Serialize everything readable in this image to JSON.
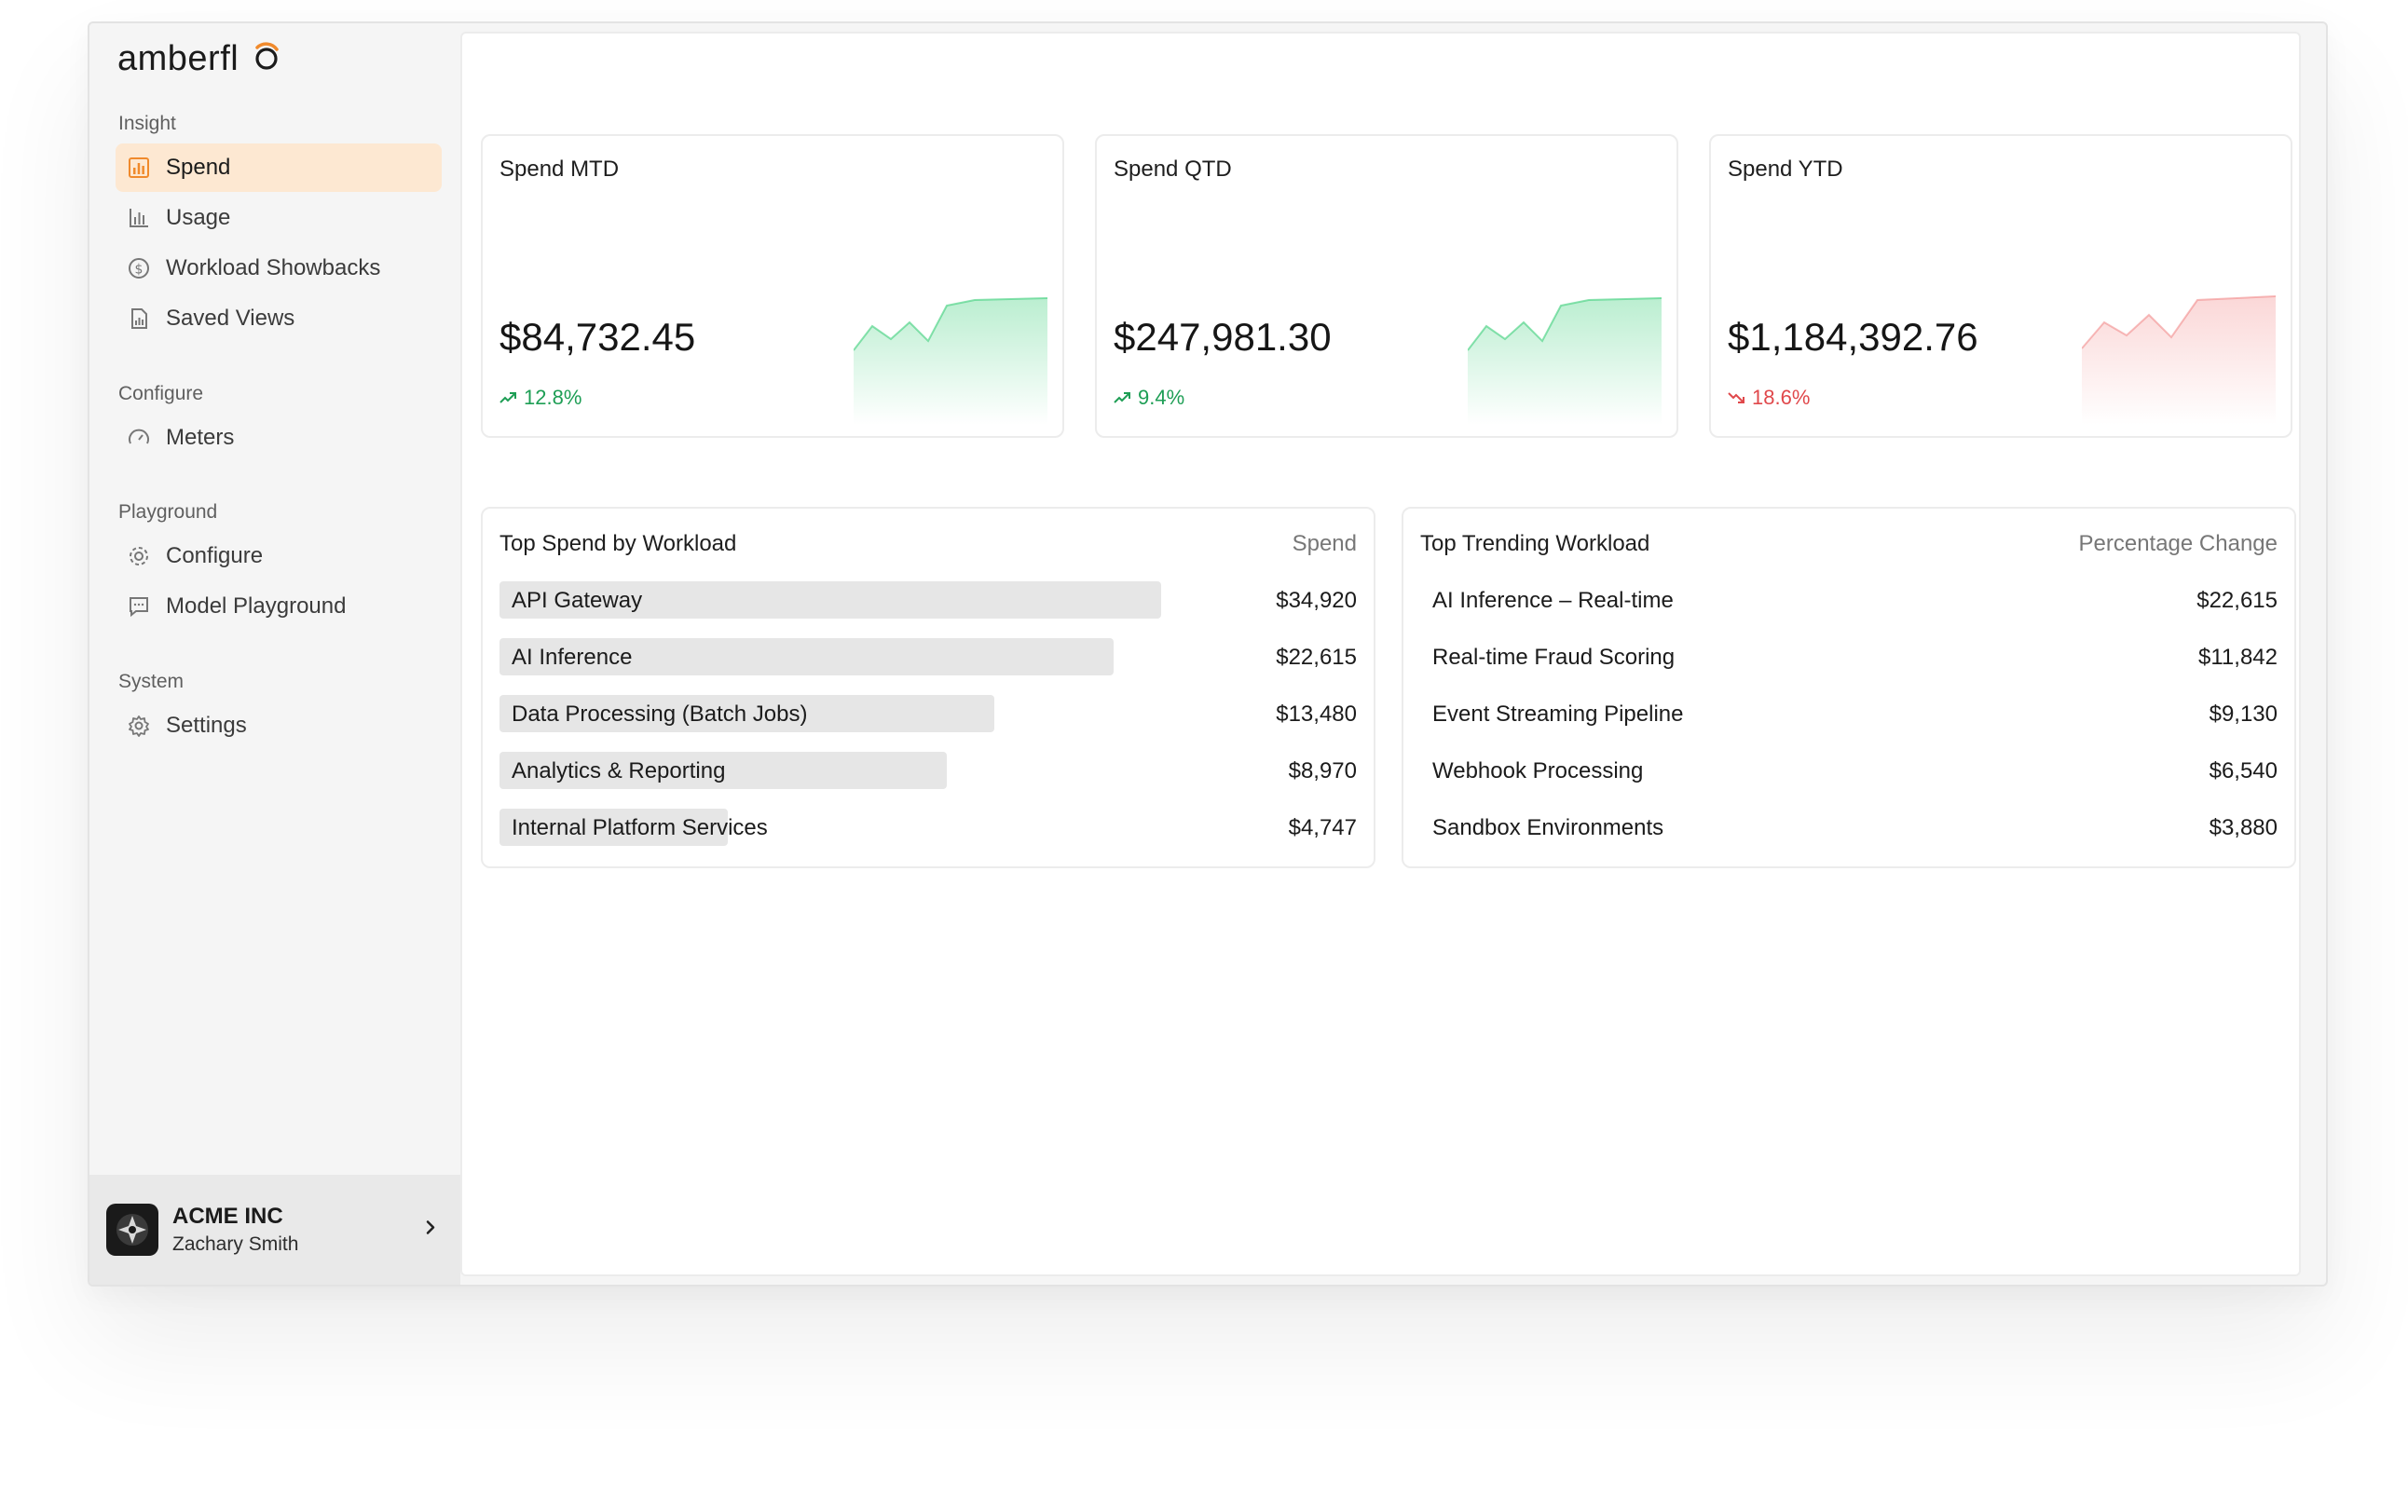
{
  "brand": {
    "name": "amberflo",
    "accent": "#f08a2c"
  },
  "sidebar": {
    "sections": [
      {
        "label": "Insight"
      },
      {
        "label": "Configure"
      },
      {
        "label": "Playground"
      },
      {
        "label": "System"
      }
    ],
    "items": [
      {
        "label": "Spend",
        "icon": "bar-chart-icon",
        "active": true
      },
      {
        "label": "Usage",
        "icon": "bar-chart-outline-icon"
      },
      {
        "label": "Workload Showbacks",
        "icon": "dollar-circle-icon"
      },
      {
        "label": "Saved Views",
        "icon": "document-chart-icon"
      },
      {
        "label": "Meters",
        "icon": "gauge-icon"
      },
      {
        "label": "Configure",
        "icon": "cog-icon"
      },
      {
        "label": "Model Playground",
        "icon": "chat-icon"
      },
      {
        "label": "Settings",
        "icon": "settings-gear-icon"
      }
    ],
    "account": {
      "org": "ACME INC",
      "user": "Zachary Smith"
    }
  },
  "kpis": [
    {
      "title": "Spend MTD",
      "value": "$84,732.45",
      "change": "12.8%",
      "direction": "up",
      "color": "#1e9e55"
    },
    {
      "title": "Spend QTD",
      "value": "$247,981.30",
      "change": "9.4%",
      "direction": "up",
      "color": "#1e9e55"
    },
    {
      "title": "Spend YTD",
      "value": "$1,184,392.76",
      "change": "18.6%",
      "direction": "down",
      "color": "#e0484b"
    }
  ],
  "top_spend": {
    "title": "Top Spend by Workload",
    "column": "Spend",
    "rows": [
      {
        "label": "API Gateway",
        "value": "$34,920",
        "amount": 34920
      },
      {
        "label": "AI Inference",
        "value": "$22,615",
        "amount": 22615
      },
      {
        "label": "Data Processing (Batch Jobs)",
        "value": "$13,480",
        "amount": 13480
      },
      {
        "label": "Analytics & Reporting",
        "value": "$8,970",
        "amount": 8970
      },
      {
        "label": "Internal Platform Services",
        "value": "$4,747",
        "amount": 4747
      }
    ]
  },
  "top_trending": {
    "title": "Top Trending Workload",
    "column": "Percentage Change",
    "rows": [
      {
        "label": "AI Inference – Real-time",
        "value": "$22,615"
      },
      {
        "label": "Real-time Fraud Scoring",
        "value": "$11,842"
      },
      {
        "label": "Event Streaming Pipeline",
        "value": "$9,130"
      },
      {
        "label": "Webhook Processing",
        "value": "$6,540"
      },
      {
        "label": "Sandbox Environments",
        "value": "$3,880"
      }
    ]
  }
}
